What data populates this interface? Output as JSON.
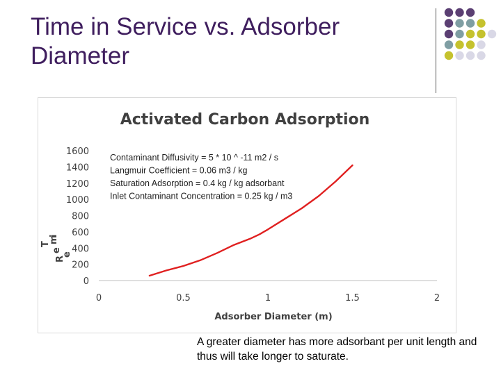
{
  "slide": {
    "title": "Time in Service vs. Adsorber Diameter",
    "caption": "A greater diameter has more adsorbant per unit length and thus will take longer to saturate."
  },
  "decoration": {
    "dot_colors": {
      "purple": "#5b3f73",
      "teal": "#7f9ea3",
      "olive": "#c5c22e",
      "lavender": "#d9d8e6"
    },
    "dot_rows": [
      [
        "purple",
        "purple",
        "purple"
      ],
      [
        "purple",
        "teal",
        "teal",
        "olive"
      ],
      [
        "purple",
        "teal",
        "olive",
        "olive",
        "lavender"
      ],
      [
        "teal",
        "olive",
        "olive",
        "lavender"
      ],
      [
        "olive",
        "lavender",
        "lavender",
        "lavender"
      ]
    ]
  },
  "chart_data": {
    "type": "line",
    "title": "Activated Carbon Adsorption",
    "xlabel": "Adsorber Diameter (m)",
    "ylabel_chars": [
      "T",
      "i",
      "m",
      "e",
      "R",
      "e"
    ],
    "xlim": [
      0,
      2
    ],
    "ylim": [
      0,
      1600
    ],
    "x_ticks": [
      "0",
      "0.5",
      "1",
      "1.5",
      "2"
    ],
    "y_ticks": [
      "0",
      "200",
      "400",
      "600",
      "800",
      "1000",
      "1200",
      "1400",
      "1600"
    ],
    "grid": false,
    "line_color": "#e02020",
    "annotations": [
      "Contaminant Diffusivity = 5 * 10 ^ -11 m2 / s",
      "Langmuir Coefficient = 0.06 m3 / kg",
      "Saturation Adsorption = 0.4 kg / kg adsorbant",
      "Inlet Contaminant Concentration = 0.25 kg / m3"
    ],
    "series": [
      {
        "x": [
          0.3,
          0.4,
          0.5,
          0.6,
          0.7,
          0.8,
          0.9,
          0.95,
          1.0,
          1.1,
          1.2,
          1.3,
          1.4,
          1.5
        ],
        "values": [
          60,
          125,
          180,
          250,
          340,
          440,
          520,
          570,
          630,
          760,
          890,
          1040,
          1220,
          1420
        ]
      }
    ]
  }
}
